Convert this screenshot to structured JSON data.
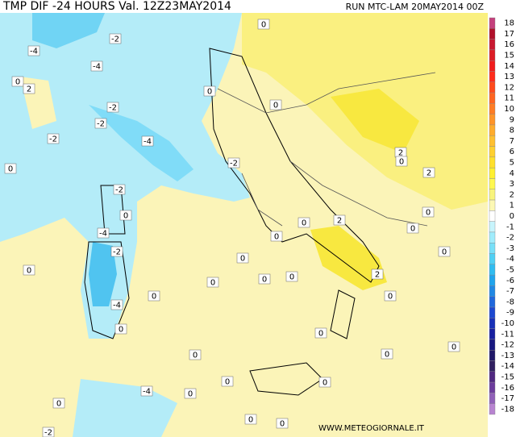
{
  "header": {
    "title": "TMP DIF -24 HOURS Val. 12Z23MAY2014",
    "run": "RUN MTC-LAM 20MAY2014 00Z"
  },
  "footer": "WWW.METEOGIORNALE.IT",
  "legend": {
    "values": [
      18,
      17,
      16,
      15,
      14,
      13,
      12,
      11,
      10,
      9,
      8,
      7,
      6,
      5,
      4,
      3,
      2,
      1,
      0,
      -1,
      -2,
      -3,
      -4,
      -5,
      -6,
      -7,
      -8,
      -9,
      -10,
      -11,
      -12,
      -13,
      -14,
      -15,
      -16,
      -17,
      -18
    ],
    "colors": [
      "#c4407c",
      "#b0102a",
      "#c81830",
      "#dc1c24",
      "#f01c1c",
      "#ff2c1c",
      "#ff4a1c",
      "#ff6420",
      "#ff7c24",
      "#ff9428",
      "#ffac2c",
      "#ffc030",
      "#ffd030",
      "#ffe02c",
      "#fff030",
      "#fff850",
      "#f8f47c",
      "#fcf8b4",
      "#ffffff",
      "#c8f4fc",
      "#a0ecfc",
      "#78e0f8",
      "#50d0f4",
      "#30bcf0",
      "#20a4ec",
      "#2088e4",
      "#2068dc",
      "#1c48d0",
      "#1830b8",
      "#1820a0",
      "#181880",
      "#201868",
      "#302060",
      "#502880",
      "#6c3c9c",
      "#9060b8",
      "#b884d0"
    ]
  },
  "map_labels": [
    -4,
    -2,
    -4,
    0,
    2,
    0,
    0,
    -2,
    0,
    -2,
    -2,
    -4,
    0,
    2,
    0,
    -2,
    2,
    -2,
    0,
    0,
    2,
    0,
    0,
    -4,
    0,
    0,
    -2,
    0,
    0,
    0,
    0,
    0,
    2,
    0,
    0,
    -4,
    0,
    0,
    0,
    0,
    0,
    0,
    0,
    -4,
    0,
    0,
    0,
    0,
    -2
  ]
}
